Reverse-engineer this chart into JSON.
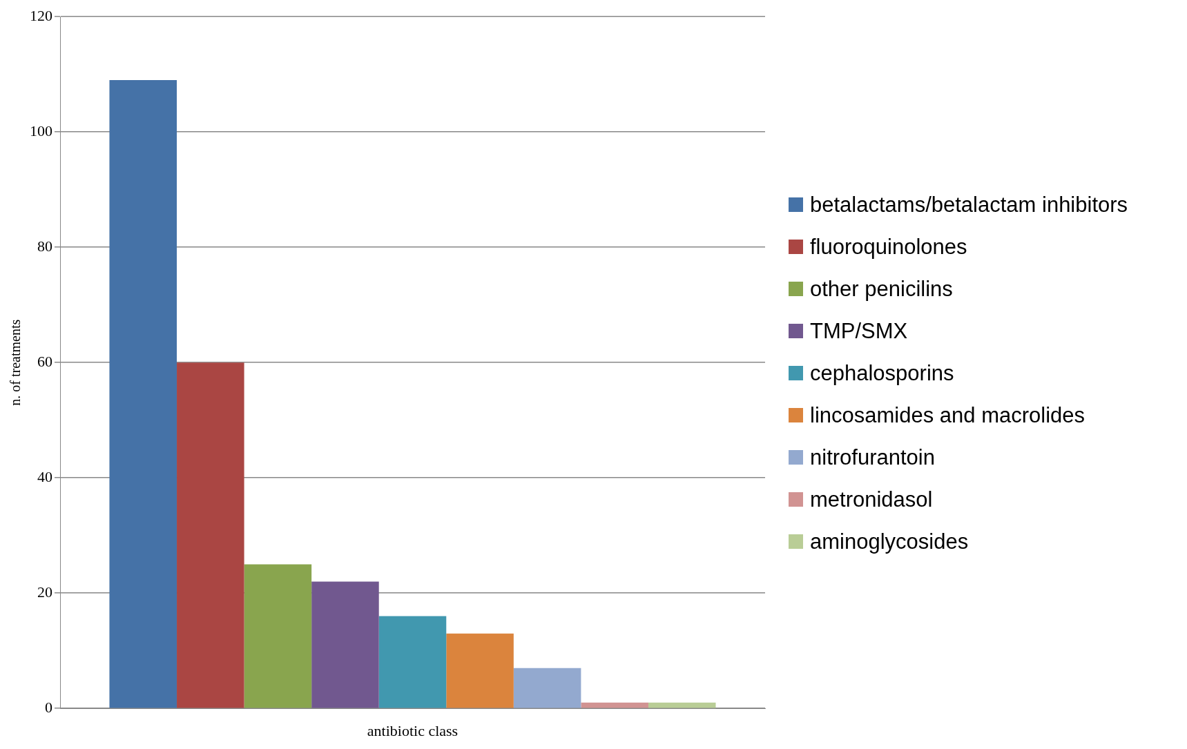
{
  "chart_data": {
    "type": "bar",
    "xlabel": "antibiotic class",
    "ylabel": "n. of treatments",
    "categories": [
      null
    ],
    "series": [
      {
        "name": "betalactams/betalactam inhibitors",
        "color": "#4572a7",
        "values": [
          109
        ]
      },
      {
        "name": "fluoroquinolones",
        "color": "#aa4643",
        "values": [
          60
        ]
      },
      {
        "name": "other penicilins",
        "color": "#89a54e",
        "values": [
          25
        ]
      },
      {
        "name": "TMP/SMX",
        "color": "#71588f",
        "values": [
          22
        ]
      },
      {
        "name": "cephalosporins",
        "color": "#4198af",
        "values": [
          16
        ]
      },
      {
        "name": "lincosamides and macrolides",
        "color": "#db843d",
        "values": [
          13
        ]
      },
      {
        "name": "nitrofurantoin",
        "color": "#93a9cf",
        "values": [
          7
        ]
      },
      {
        "name": "metronidasol",
        "color": "#d19392",
        "values": [
          1
        ]
      },
      {
        "name": "aminoglycosides",
        "color": "#b9cd96",
        "values": [
          1
        ]
      }
    ],
    "ylim": [
      0,
      120
    ],
    "yticks": [
      0,
      20,
      40,
      60,
      80,
      100,
      120
    ],
    "grid": "y",
    "legend": "right"
  }
}
